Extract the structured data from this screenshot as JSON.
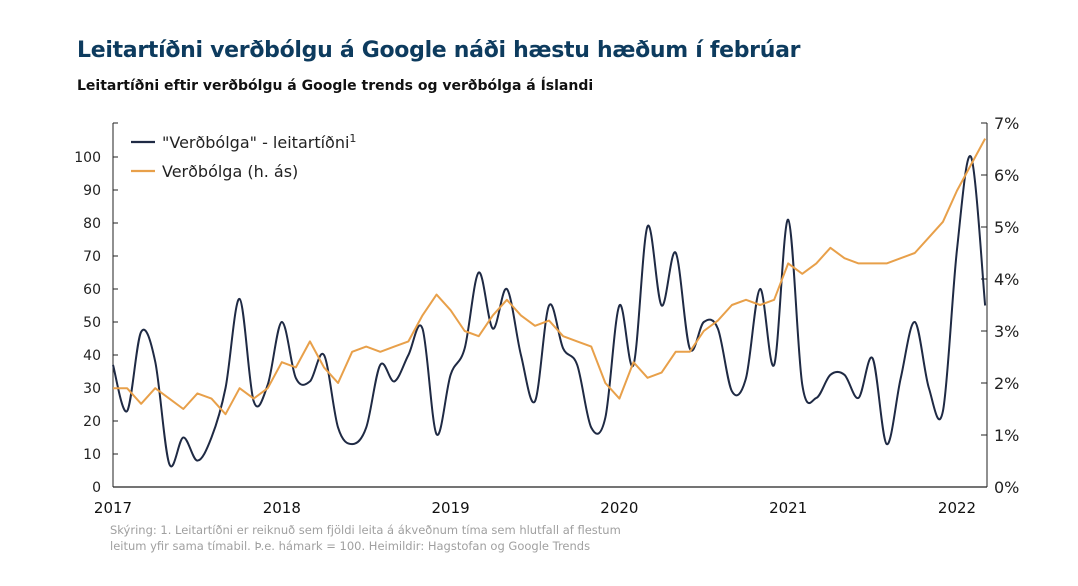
{
  "title": "Leitartíðni verðbólgu á Google náði hæstu hæðum í febrúar",
  "subtitle": "Leitartíðni eftir verðbólgu á Google trends og verðbólga á Íslandi",
  "footnote_line1": "Skýring: 1. Leitartíðni  er reiknuð  sem fjöldi leita á ákveðnum  tíma sem hlutfall  af flestum",
  "footnote_line2": "leitum yfir sama tímabil. Þ.e. hámark = 100. Heimildir: Hagstofan og Google Trends",
  "chart_data": {
    "type": "line",
    "x_start": "2017-01",
    "x_frequency": "monthly",
    "x_ticks": [
      "2017",
      "2018",
      "2019",
      "2020",
      "2021",
      "2022"
    ],
    "y_left": {
      "range": [
        0,
        100
      ],
      "ticks": [
        "0",
        "10",
        "20",
        "30",
        "40",
        "50",
        "60",
        "70",
        "80",
        "90",
        "100"
      ]
    },
    "y_right": {
      "range": [
        0,
        7
      ],
      "ticks": [
        "0%",
        "1%",
        "2%",
        "3%",
        "4%",
        "5%",
        "6%",
        "7%"
      ]
    },
    "grid": false,
    "legend_placement": "top-left",
    "series": [
      {
        "name": "\"Verðbólga\" - leitartíðni",
        "superscript": "1",
        "axis": "left",
        "color": "#1f2a44",
        "smooth": true,
        "values": [
          37,
          23,
          47,
          38,
          7,
          15,
          8,
          15,
          30,
          57,
          26,
          31,
          50,
          33,
          32,
          40,
          18,
          13,
          18,
          37,
          32,
          40,
          48,
          16,
          34,
          42,
          65,
          48,
          60,
          40,
          26,
          55,
          42,
          37,
          18,
          21,
          55,
          37,
          79,
          55,
          71,
          42,
          50,
          48,
          29,
          33,
          60,
          37,
          81,
          31,
          27,
          34,
          34,
          27,
          39,
          13,
          33,
          50,
          30,
          23,
          72,
          100,
          55
        ]
      },
      {
        "name": "Verðbólga (h. ás)",
        "axis": "right",
        "color": "#e8a04a",
        "values": [
          1.9,
          1.9,
          1.6,
          1.9,
          1.7,
          1.5,
          1.8,
          1.7,
          1.4,
          1.9,
          1.7,
          1.9,
          2.4,
          2.3,
          2.8,
          2.3,
          2.0,
          2.6,
          2.7,
          2.6,
          2.7,
          2.8,
          3.3,
          3.7,
          3.4,
          3.0,
          2.9,
          3.3,
          3.6,
          3.3,
          3.1,
          3.2,
          2.9,
          2.8,
          2.7,
          2.0,
          1.7,
          2.4,
          2.1,
          2.2,
          2.6,
          2.6,
          3.0,
          3.2,
          3.5,
          3.6,
          3.5,
          3.6,
          4.3,
          4.1,
          4.3,
          4.6,
          4.4,
          4.3,
          4.3,
          4.3,
          4.4,
          4.5,
          4.8,
          5.1,
          5.7,
          6.2,
          6.7
        ]
      }
    ]
  }
}
